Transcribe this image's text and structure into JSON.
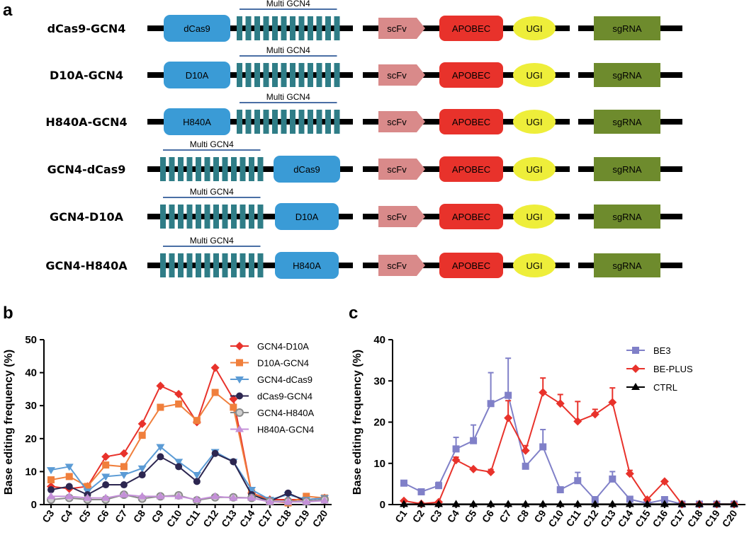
{
  "panels": {
    "a": "a",
    "b": "b",
    "c": "c"
  },
  "domains": {
    "multi": "Multi GCN4",
    "scfv": "scFv",
    "apobec": "APOBEC",
    "ugi": "UGI",
    "sgrna": "sgRNA"
  },
  "constructs": [
    {
      "name": "dCas9-GCN4",
      "cas": "dCas9",
      "order": "cas-first"
    },
    {
      "name": "D10A-GCN4",
      "cas": "D10A",
      "order": "cas-first"
    },
    {
      "name": "H840A-GCN4",
      "cas": "H840A",
      "order": "cas-first"
    },
    {
      "name": "GCN4-dCas9",
      "cas": "dCas9",
      "order": "gcn4-first"
    },
    {
      "name": "GCN4-D10A",
      "cas": "D10A",
      "order": "gcn4-first"
    },
    {
      "name": "GCN4-H840A",
      "cas": "H840A",
      "order": "gcn4-first"
    }
  ],
  "colors": {
    "cas": "#3a9bd6",
    "gcn4": "#2f7d87",
    "scfv": "#d98a8a",
    "apobec": "#e8322b",
    "ugi": "#eeee3a",
    "sgrna": "#6e8b2d",
    "line": "#000000",
    "bracket": "#4a6fa5"
  },
  "chart_data": [
    {
      "type": "line",
      "panel": "b",
      "ylabel": "Base editing frequency (%)",
      "xlabel": "",
      "ylim": [
        0,
        50
      ],
      "yticks": [
        "0",
        "10",
        "20",
        "30",
        "40",
        "50"
      ],
      "categories": [
        "C3",
        "C4",
        "C5",
        "C6",
        "C7",
        "C8",
        "C9",
        "C10",
        "C11",
        "C12",
        "C13",
        "C14",
        "C17",
        "C18",
        "C19",
        "C20"
      ],
      "legend_position": "top-right",
      "series": [
        {
          "name": "GCN4-D10A",
          "color": "#e8322b",
          "marker": "diamond",
          "values": [
            5.5,
            4.8,
            5.5,
            14.5,
            15.5,
            24.5,
            36,
            33.5,
            25,
            41.5,
            32,
            3.5,
            1.5,
            1.5,
            1.5,
            2.0
          ]
        },
        {
          "name": "D10A-GCN4",
          "color": "#f07f3c",
          "marker": "square",
          "values": [
            7.5,
            8.5,
            5.5,
            12,
            11.5,
            21,
            29.5,
            30.5,
            25.5,
            34,
            29.5,
            3.5,
            1.0,
            0.5,
            2.5,
            2.0
          ]
        },
        {
          "name": "GCN4-dCas9",
          "color": "#5b9bd5",
          "marker": "triangle-down",
          "values": [
            10.5,
            11.5,
            4.0,
            8.5,
            9,
            11,
            17.5,
            13,
            9,
            16,
            13,
            4.5,
            1.5,
            3.0,
            1.5,
            2.0
          ]
        },
        {
          "name": "dCas9-GCN4",
          "color": "#2c2650",
          "marker": "circle",
          "values": [
            4.5,
            5.5,
            3.0,
            6,
            6,
            9,
            14.5,
            11.5,
            7,
            15.5,
            13,
            3.0,
            1.0,
            3.5,
            1.0,
            1.5
          ]
        },
        {
          "name": "GCN4-H840A",
          "color": "#8a8a8a",
          "marker": "circle-open",
          "values": [
            1.5,
            2.0,
            1.5,
            1.5,
            3,
            1.8,
            2.5,
            2.8,
            1.3,
            2.2,
            2.2,
            2.0,
            1.0,
            1.0,
            1.0,
            1.5
          ]
        },
        {
          "name": "H840A-GCN4",
          "color": "#c490d8",
          "marker": "triangle-up",
          "values": [
            2.5,
            2.5,
            2.0,
            2.0,
            3.0,
            2.5,
            2.5,
            2.5,
            1.5,
            2.5,
            2.0,
            2.0,
            0.8,
            0.8,
            0.8,
            1.2
          ]
        }
      ]
    },
    {
      "type": "line",
      "panel": "c",
      "ylabel": "Base editing frequency (%)",
      "xlabel": "",
      "ylim": [
        0,
        40
      ],
      "yticks": [
        "0",
        "10",
        "20",
        "30",
        "40"
      ],
      "categories": [
        "C1",
        "C2",
        "C3",
        "C4",
        "C5",
        "C6",
        "C7",
        "C8",
        "C9",
        "C10",
        "C11",
        "C12",
        "C13",
        "C14",
        "C15",
        "C16",
        "C17",
        "C18",
        "C19",
        "C20"
      ],
      "legend_position": "top-right",
      "series": [
        {
          "name": "BE3",
          "color": "#8080c8",
          "marker": "square",
          "values": [
            5.2,
            3.1,
            4.6,
            13.5,
            15.5,
            24.5,
            26.5,
            9.3,
            14,
            3.6,
            5.8,
            1.2,
            6.2,
            1.3,
            0.3,
            1.2,
            0.1,
            0.1,
            0.1,
            0.1
          ],
          "errors": [
            0,
            0,
            0.8,
            2.8,
            3.8,
            7.5,
            9,
            0,
            4.2,
            0,
            2,
            0,
            1.8,
            0,
            0,
            0,
            0,
            0,
            0,
            0
          ]
        },
        {
          "name": "BE-PLUS",
          "color": "#e8322b",
          "marker": "diamond",
          "values": [
            0.9,
            0.2,
            0.6,
            10.8,
            8.6,
            7.9,
            21,
            13.1,
            27.2,
            24.5,
            20.2,
            21.9,
            24.8,
            7.5,
            1.2,
            5.6,
            0.1,
            0.1,
            0.1,
            0.1
          ],
          "errors": [
            0,
            0,
            0,
            0.7,
            0,
            0.6,
            4.2,
            1.2,
            3.5,
            2.2,
            4.8,
            1.2,
            3.5,
            0.8,
            0,
            0,
            0,
            0,
            0,
            0
          ]
        },
        {
          "name": "CTRL",
          "color": "#000000",
          "marker": "triangle-up",
          "values": [
            0.1,
            0.1,
            0.1,
            0.1,
            0.1,
            0.1,
            0.1,
            0.1,
            0.1,
            0.1,
            0.1,
            0.1,
            0.1,
            0.1,
            0.1,
            0.1,
            0.1,
            0.1,
            0.1,
            0.1
          ],
          "errors": [
            0,
            0,
            0,
            0,
            0,
            0,
            0,
            0,
            0,
            0,
            0,
            0,
            0,
            0,
            0,
            0,
            0,
            0,
            0,
            0
          ]
        }
      ]
    }
  ]
}
